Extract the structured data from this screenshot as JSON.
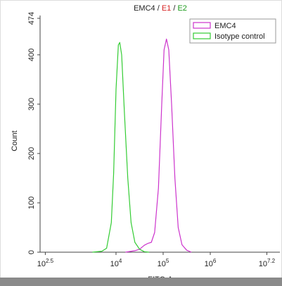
{
  "chart_data": {
    "type": "histogram-overlay",
    "title_parts": [
      {
        "text": "EMC4",
        "color": "#222222"
      },
      {
        "text": " / ",
        "color": "#222222"
      },
      {
        "text": "E1",
        "color": "#d62020"
      },
      {
        "text": " / ",
        "color": "#222222"
      },
      {
        "text": "E2",
        "color": "#1a9a1a"
      }
    ],
    "xlabel": "FITC-A",
    "ylabel": "Count",
    "xscale": "log",
    "xlim": [
      245,
      30000000
    ],
    "ylim": [
      0,
      474
    ],
    "xticks": [
      {
        "value": 316.2,
        "label": "10",
        "exponent": "2.5"
      },
      {
        "value": 10000,
        "label": "10",
        "exponent": "4"
      },
      {
        "value": 100000,
        "label": "10",
        "exponent": "5"
      },
      {
        "value": 1000000,
        "label": "10",
        "exponent": "6"
      },
      {
        "value": 15848932,
        "label": "10",
        "exponent": "7.2"
      }
    ],
    "yticks": [
      0,
      100,
      200,
      300,
      400,
      474
    ],
    "legend": "upper right",
    "series": [
      {
        "name": "EMC4",
        "color": "#cc33cc",
        "x": [
          15849,
          25119,
          31623,
          39811,
          47863,
          56234,
          66069,
          79433,
          93325,
          104713,
          117490,
          131826,
          151356,
          177828,
          208930,
          251189,
          316228,
          398107
        ],
        "values": [
          0,
          3,
          6,
          14,
          18,
          20,
          40,
          130,
          300,
          410,
          432,
          410,
          300,
          150,
          50,
          15,
          4,
          0
        ]
      },
      {
        "name": "Isotype control",
        "color": "#33cc33",
        "x": [
          3162,
          5012,
          6310,
          7943,
          8913,
          10000,
          11220,
          12023,
          13183,
          15136,
          17783,
          20893,
          25119,
          31623,
          39811,
          50119
        ],
        "values": [
          0,
          2,
          8,
          60,
          160,
          330,
          420,
          425,
          400,
          280,
          150,
          60,
          20,
          6,
          1,
          0
        ]
      }
    ]
  }
}
